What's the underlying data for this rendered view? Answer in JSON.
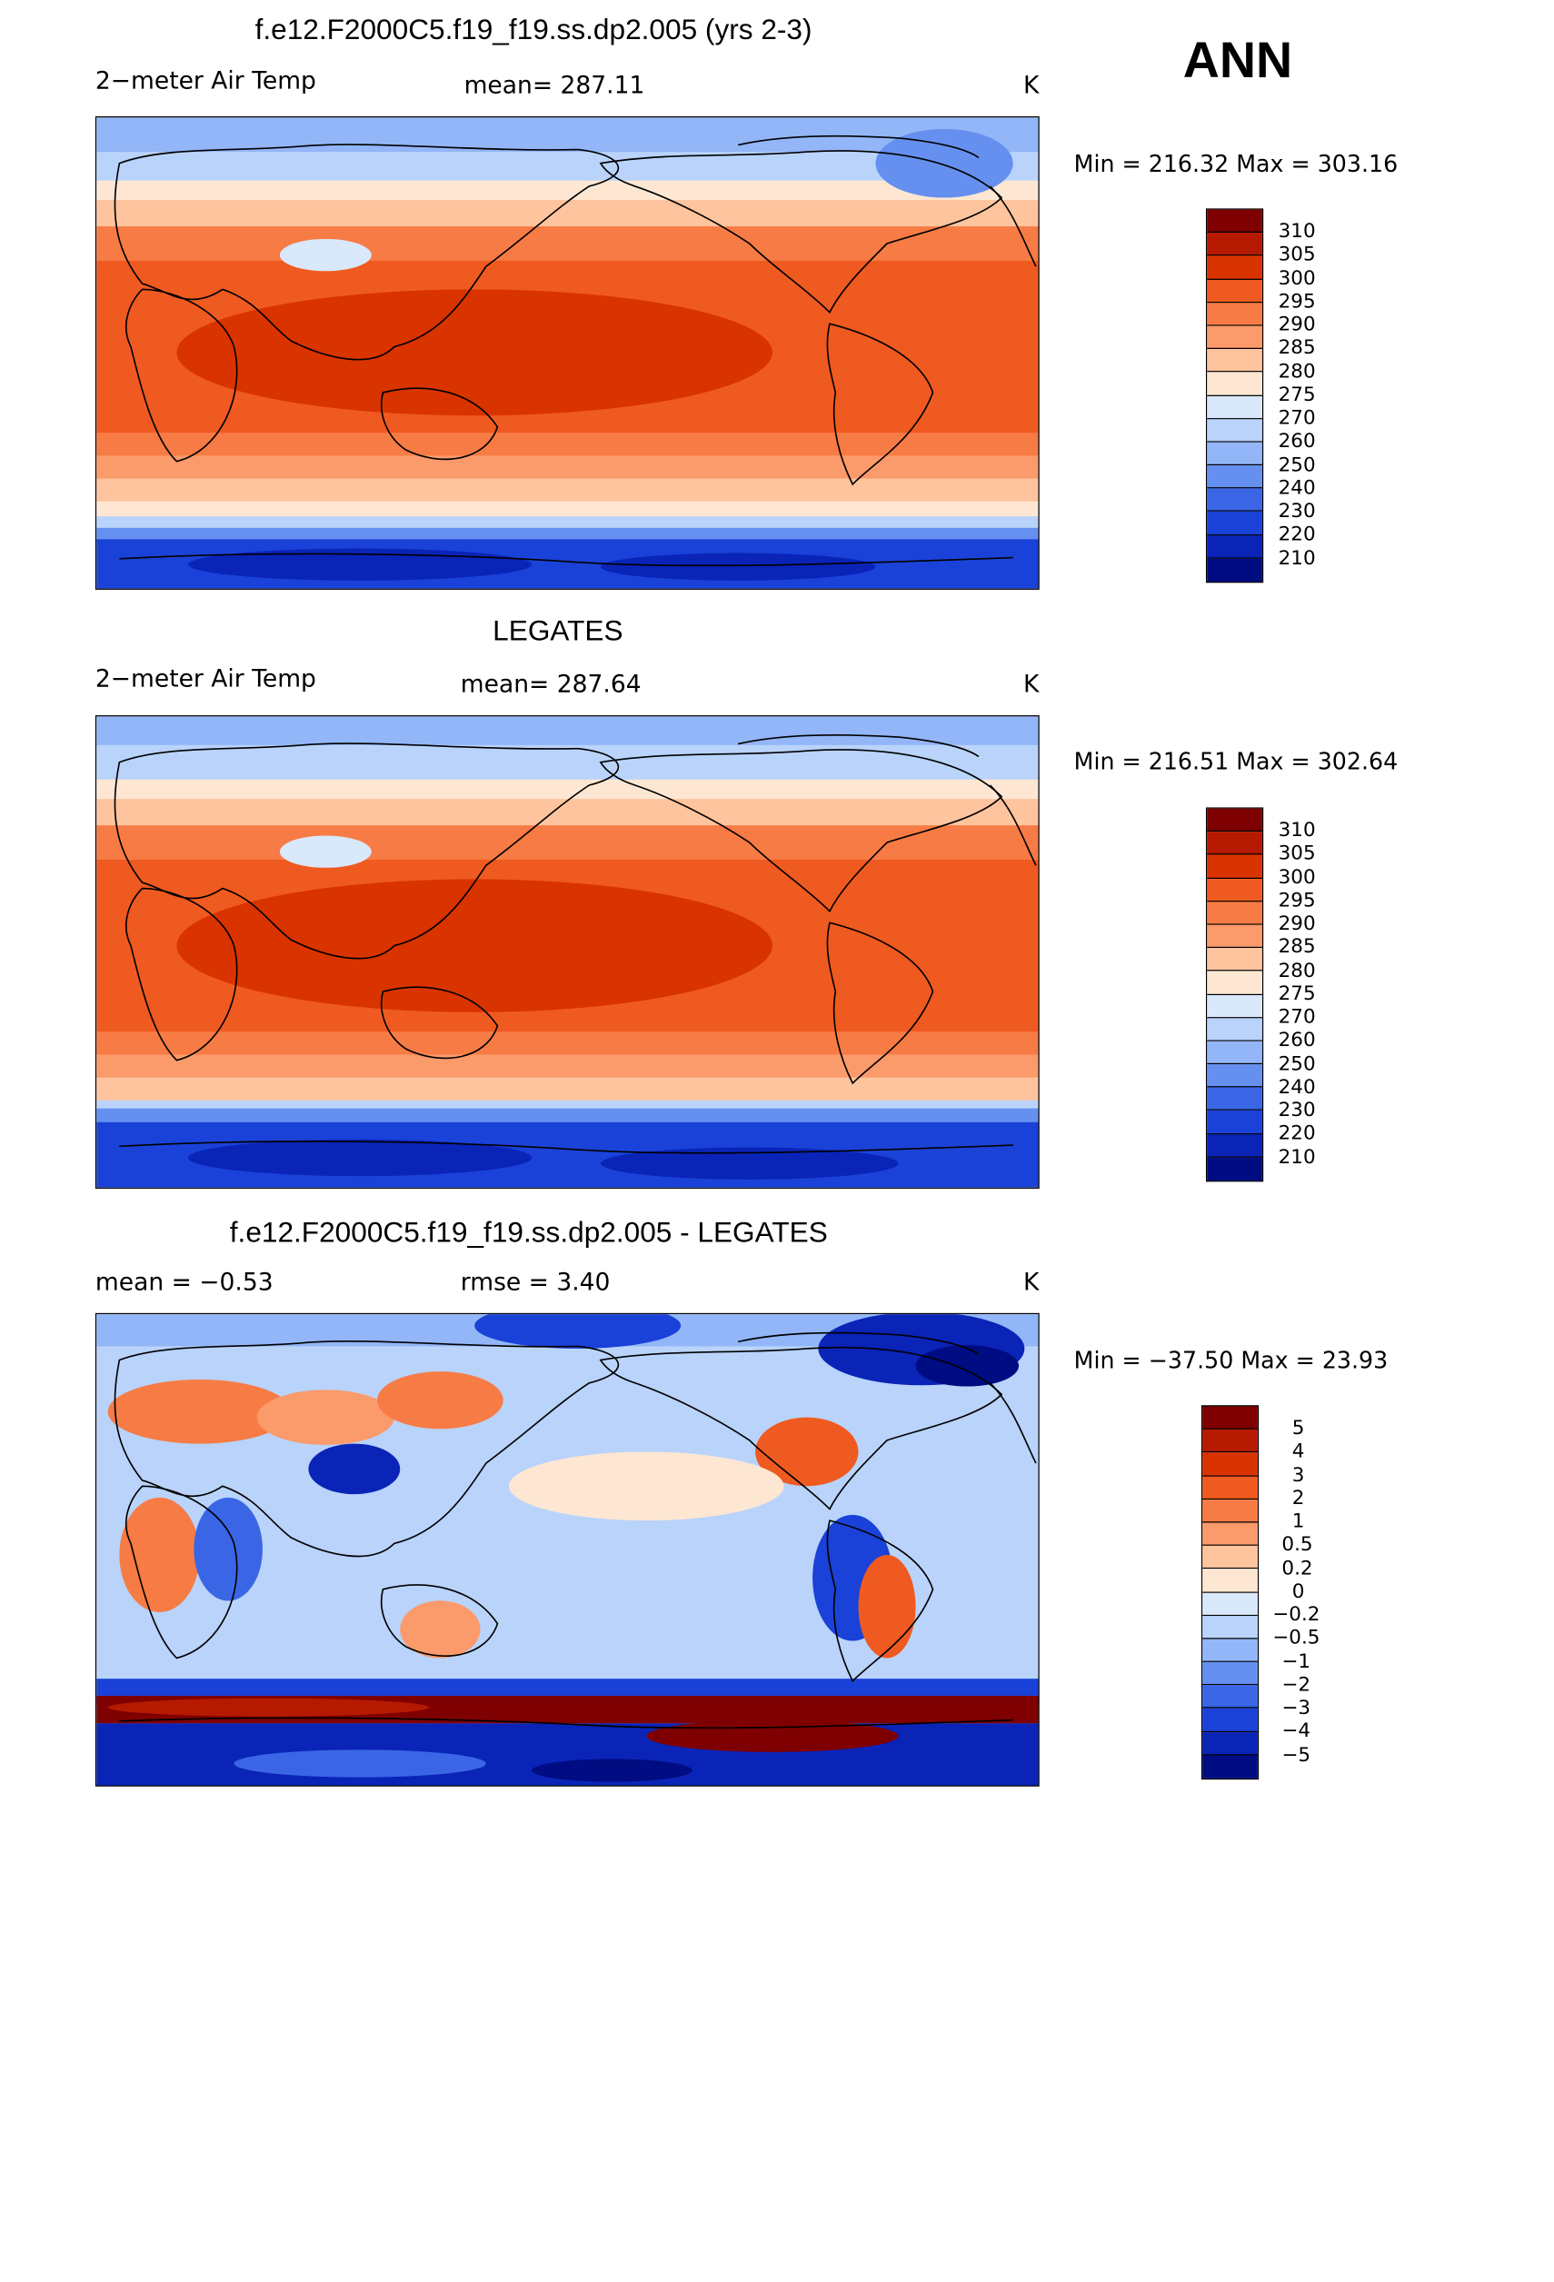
{
  "season": "ANN",
  "panels": [
    {
      "title": "f.e12.F2000C5.f19_f19.ss.dp2.005 (yrs 2-3)",
      "left_label": "2−meter Air Temp",
      "center_label": "mean=  287.11",
      "right_label": "K",
      "minmax": "Min  =  216.32  Max  =  303.16",
      "colorbar_labels": [
        "310",
        "305",
        "300",
        "295",
        "290",
        "285",
        "280",
        "275",
        "270",
        "260",
        "250",
        "240",
        "230",
        "220",
        "210"
      ]
    },
    {
      "title": "LEGATES",
      "left_label": "2−meter Air Temp",
      "center_label": "mean=  287.64",
      "right_label": "K",
      "minmax": "Min  =  216.51  Max  =  302.64",
      "colorbar_labels": [
        "310",
        "305",
        "300",
        "295",
        "290",
        "285",
        "280",
        "275",
        "270",
        "260",
        "250",
        "240",
        "230",
        "220",
        "210"
      ]
    },
    {
      "title": "f.e12.F2000C5.f19_f19.ss.dp2.005 - LEGATES",
      "left_label": "mean  =     −0.53",
      "center_label": "rmse  =      3.40",
      "right_label": "K",
      "minmax": "Min  =  −37.50  Max  =    23.93",
      "colorbar_labels": [
        "5",
        "4",
        "3",
        "2",
        "1",
        "0.5",
        "0.2",
        "0",
        "−0.2",
        "−0.5",
        "−1",
        "−2",
        "−3",
        "−4",
        "−5"
      ]
    }
  ],
  "colors": {
    "scale": [
      "#7f0000",
      "#b51a00",
      "#d93300",
      "#ef5a20",
      "#f77b45",
      "#fb9a6a",
      "#fdc49e",
      "#fde7d3",
      "#d9e8fb",
      "#b9d3fa",
      "#92b6f7",
      "#6690f0",
      "#3a66e6",
      "#1a42d8",
      "#0a24b8",
      "#000c82"
    ]
  }
}
